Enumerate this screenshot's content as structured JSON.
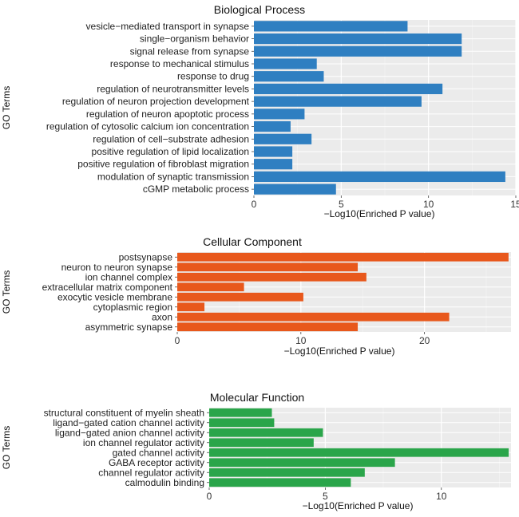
{
  "chart_data": [
    {
      "type": "bar",
      "orientation": "horizontal",
      "title": "Biological Process",
      "xlabel": "−Log10(Enriched P value)",
      "ylabel": "GO Terms",
      "color": "#2f7fc1",
      "xlim": [
        0,
        15
      ],
      "xticks": [
        0,
        5,
        10,
        15
      ],
      "categories": [
        "vesicle−mediated transport in synapse",
        "single−organism behavior",
        "signal release from synapse",
        "response to mechanical stimulus",
        "response to drug",
        "regulation of neurotransmitter levels",
        "regulation of neuron projection development",
        "regulation of neuron apoptotic process",
        "regulation of cytosolic calcium ion concentration",
        "regulation of cell−substrate adhesion",
        "positive regulation of lipid localization",
        "positive regulation of fibroblast migration",
        "modulation of synaptic transmission",
        "cGMP metabolic process"
      ],
      "values": [
        8.8,
        11.9,
        11.9,
        3.6,
        4.0,
        10.8,
        9.6,
        2.9,
        2.1,
        3.3,
        2.2,
        2.2,
        14.4,
        4.7
      ]
    },
    {
      "type": "bar",
      "orientation": "horizontal",
      "title": "Cellular Component",
      "xlabel": "−Log10(Enriched P value)",
      "ylabel": "GO Terms",
      "color": "#e8581c",
      "xlim": [
        0,
        27
      ],
      "xticks": [
        0,
        10,
        20
      ],
      "categories": [
        "postsynapse",
        "neuron to neuron synapse",
        "ion channel complex",
        "extracellular matrix component",
        "exocytic vesicle membrane",
        "cytoplasmic region",
        "axon",
        "asymmetric synapse"
      ],
      "values": [
        26.8,
        14.6,
        15.3,
        5.4,
        10.2,
        2.2,
        22.0,
        14.6
      ]
    },
    {
      "type": "bar",
      "orientation": "horizontal",
      "title": "Molecular Function",
      "xlabel": "−Log10(Enriched P value)",
      "ylabel": "GO Terms",
      "color": "#2aa54a",
      "xlim": [
        0,
        13
      ],
      "xticks": [
        0,
        5,
        10
      ],
      "categories": [
        "structural constituent of myelin sheath",
        "ligand−gated cation channel activity",
        "ligand−gated anion channel activity",
        "ion channel regulator activity",
        "gated channel activity",
        "GABA receptor activity",
        "channel regulator activity",
        "calmodulin binding"
      ],
      "values": [
        2.7,
        2.8,
        4.9,
        4.5,
        12.9,
        8.0,
        6.7,
        6.1
      ]
    }
  ]
}
